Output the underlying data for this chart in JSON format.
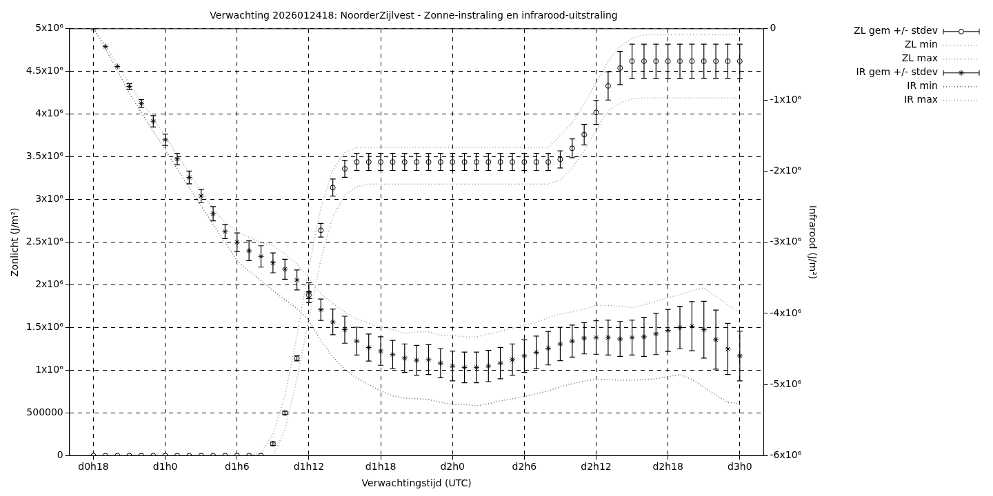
{
  "chart_data": {
    "type": "scatter",
    "title": "Verwachting 2026012418: NoorderZijlvest - Zonne-instraling en infrarood-uitstraling",
    "xlabel": "Verwachtingstijd (UTC)",
    "ylabel": "Zonlicht (J/m²)",
    "y2label": "Infrarood (J/m²)",
    "categories": [
      "d0h18",
      null,
      null,
      null,
      null,
      null,
      "d1h0",
      null,
      null,
      null,
      null,
      null,
      "d1h6",
      null,
      null,
      null,
      null,
      null,
      "d1h12",
      null,
      null,
      null,
      null,
      null,
      "d1h18",
      null,
      null,
      null,
      null,
      null,
      "d2h0",
      null,
      null,
      null,
      null,
      null,
      "d2h6",
      null,
      null,
      null,
      null,
      null,
      "d2h12",
      null,
      null,
      null,
      null,
      null,
      "d2h18",
      null,
      null,
      null,
      null,
      null,
      "d3h0"
    ],
    "ylim": [
      0,
      5000000
    ],
    "yticks": [
      0,
      500000,
      {
        "value": 1000000,
        "label": "1x10⁶"
      },
      {
        "value": 1500000,
        "label": "1.5x10⁶"
      },
      {
        "value": 2000000,
        "label": "2x10⁶"
      },
      {
        "value": 2500000,
        "label": "2.5x10⁶"
      },
      {
        "value": 3000000,
        "label": "3x10⁶"
      },
      {
        "value": 3500000,
        "label": "3.5x10⁶"
      },
      {
        "value": 4000000,
        "label": "4x10⁶"
      },
      {
        "value": 4500000,
        "label": "4.5x10⁶"
      },
      {
        "value": 5000000,
        "label": "5x10⁶"
      }
    ],
    "y2lim": [
      -6000000,
      0
    ],
    "y2ticks": [
      {
        "value": -6000000,
        "label": "-6x10⁶"
      },
      {
        "value": -5000000,
        "label": "-5x10⁶"
      },
      {
        "value": -4000000,
        "label": "-4x10⁶"
      },
      {
        "value": -3000000,
        "label": "-3x10⁶"
      },
      {
        "value": -2000000,
        "label": "-2x10⁶"
      },
      {
        "value": -1000000,
        "label": "-1x10⁶"
      },
      0
    ],
    "grid": true,
    "legend": "top right",
    "series": [
      {
        "name": "ZL gem +/- stdev",
        "type": "scatter",
        "marker": "circle",
        "color": "#000000",
        "values": [
          0,
          0,
          0,
          0,
          0,
          0,
          0,
          0,
          0,
          0,
          0,
          0,
          0,
          0,
          0,
          140000,
          500000,
          1140000,
          1880000,
          2640000,
          3140000,
          3360000,
          3440000,
          3440000,
          3440000,
          3440000,
          3440000,
          3440000,
          3440000,
          3440000,
          3440000,
          3440000,
          3440000,
          3440000,
          3440000,
          3440000,
          3440000,
          3440000,
          3440000,
          3470000,
          3600000,
          3760000,
          4020000,
          4330000,
          4540000,
          4620000,
          4620000,
          4620000,
          4620000,
          4620000,
          4620000,
          4620000,
          4620000,
          4620000,
          4620000
        ],
        "errors": [
          null,
          null,
          null,
          null,
          null,
          null,
          null,
          null,
          null,
          null,
          null,
          null,
          null,
          null,
          null,
          20000,
          20000,
          30000,
          40000,
          80000,
          100000,
          100000,
          100000,
          100000,
          100000,
          100000,
          100000,
          100000,
          100000,
          100000,
          100000,
          100000,
          100000,
          100000,
          100000,
          100000,
          100000,
          100000,
          100000,
          100000,
          110000,
          120000,
          140000,
          165000,
          195000,
          200000,
          200000,
          200000,
          200000,
          200000,
          200000,
          200000,
          200000,
          200000,
          200000
        ]
      },
      {
        "name": "ZL min",
        "type": "line",
        "marker": "none",
        "line_style": "dotted",
        "color": "#a0a0a0",
        "values": [
          0,
          0,
          0,
          0,
          0,
          0,
          0,
          0,
          0,
          0,
          0,
          0,
          0,
          0,
          0,
          0,
          300000,
          900000,
          1600000,
          2300000,
          2800000,
          3050000,
          3150000,
          3180000,
          3180000,
          3180000,
          3180000,
          3180000,
          3180000,
          3180000,
          3180000,
          3180000,
          3180000,
          3180000,
          3180000,
          3180000,
          3180000,
          3180000,
          3180000,
          3230000,
          3370000,
          3570000,
          3810000,
          4040000,
          4130000,
          4180000,
          4190000,
          4190000,
          4190000,
          4190000,
          4190000,
          4190000,
          4190000,
          4190000,
          4190000
        ]
      },
      {
        "name": "ZL max",
        "type": "line",
        "marker": "none",
        "line_style": "dotted",
        "color": "#a0a0a0",
        "values": [
          0,
          0,
          0,
          0,
          0,
          0,
          0,
          0,
          0,
          0,
          0,
          0,
          0,
          0,
          30000,
          250000,
          700000,
          1400000,
          2200000,
          2900000,
          3350000,
          3550000,
          3610000,
          3610000,
          3610000,
          3610000,
          3610000,
          3610000,
          3610000,
          3610000,
          3610000,
          3610000,
          3610000,
          3610000,
          3610000,
          3610000,
          3610000,
          3610000,
          3610000,
          3750000,
          3900000,
          4120000,
          4370000,
          4620000,
          4790000,
          4890000,
          4930000,
          4930000,
          4930000,
          4930000,
          4930000,
          4930000,
          4930000,
          4930000,
          4930000
        ]
      },
      {
        "name": "IR gem +/- stdev",
        "type": "scatter",
        "marker": "cross",
        "axis": "y2",
        "color": "#000000",
        "values": [
          0,
          -250000,
          -530000,
          -810000,
          -1050000,
          -1300000,
          -1560000,
          -1830000,
          -2090000,
          -2350000,
          -2600000,
          -2850000,
          -3000000,
          -3120000,
          -3200000,
          -3290000,
          -3380000,
          -3530000,
          -3710000,
          -3950000,
          -4120000,
          -4230000,
          -4390000,
          -4480000,
          -4530000,
          -4580000,
          -4630000,
          -4660000,
          -4650000,
          -4700000,
          -4740000,
          -4760000,
          -4760000,
          -4740000,
          -4700000,
          -4650000,
          -4600000,
          -4550000,
          -4490000,
          -4430000,
          -4390000,
          -4350000,
          -4340000,
          -4340000,
          -4360000,
          -4340000,
          -4330000,
          -4290000,
          -4240000,
          -4200000,
          -4180000,
          -4230000,
          -4370000,
          -4500000,
          -4600000
        ],
        "errors": [
          null,
          null,
          null,
          40000,
          55000,
          80000,
          80000,
          80000,
          90000,
          90000,
          100000,
          100000,
          130000,
          140000,
          150000,
          140000,
          140000,
          140000,
          140000,
          150000,
          180000,
          190000,
          195000,
          190000,
          200000,
          200000,
          200000,
          210000,
          210000,
          205000,
          210000,
          215000,
          215000,
          220000,
          220000,
          220000,
          230000,
          230000,
          235000,
          235000,
          225000,
          220000,
          235000,
          245000,
          245000,
          245000,
          275000,
          290000,
          295000,
          300000,
          345000,
          400000,
          415000,
          360000,
          350000
        ]
      },
      {
        "name": "IR min",
        "type": "line",
        "marker": "none",
        "line_style": "dotted",
        "axis": "y2",
        "color": "#606060",
        "values": [
          0,
          -280000,
          -590000,
          -900000,
          -1180000,
          -1440000,
          -1700000,
          -1970000,
          -2230000,
          -2490000,
          -2750000,
          -3000000,
          -3260000,
          -3410000,
          -3540000,
          -3680000,
          -3810000,
          -3930000,
          -4100000,
          -4380000,
          -4610000,
          -4790000,
          -4910000,
          -5000000,
          -5090000,
          -5160000,
          -5190000,
          -5200000,
          -5210000,
          -5250000,
          -5280000,
          -5280000,
          -5300000,
          -5270000,
          -5230000,
          -5200000,
          -5170000,
          -5130000,
          -5090000,
          -5030000,
          -4990000,
          -4950000,
          -4930000,
          -4930000,
          -4940000,
          -4940000,
          -4930000,
          -4920000,
          -4890000,
          -4860000,
          -4930000,
          -5040000,
          -5150000,
          -5250000,
          -5270000
        ]
      },
      {
        "name": "IR max",
        "type": "line",
        "marker": "none",
        "line_style": "dotted",
        "axis": "y2",
        "color": "#a0a0a0",
        "values": [
          0,
          -230000,
          -500000,
          -780000,
          -1020000,
          -1260000,
          -1510000,
          -1770000,
          -2020000,
          -2280000,
          -2530000,
          -2720000,
          -2850000,
          -2930000,
          -3000000,
          -3050000,
          -3160000,
          -3310000,
          -3500000,
          -3730000,
          -3860000,
          -3980000,
          -4080000,
          -4140000,
          -4190000,
          -4230000,
          -4280000,
          -4260000,
          -4260000,
          -4310000,
          -4310000,
          -4330000,
          -4330000,
          -4290000,
          -4250000,
          -4210000,
          -4160000,
          -4130000,
          -4060000,
          -4010000,
          -3980000,
          -3940000,
          -3890000,
          -3890000,
          -3900000,
          -3920000,
          -3880000,
          -3830000,
          -3780000,
          -3740000,
          -3680000,
          -3640000,
          -3760000,
          -3880000,
          -3990000
        ]
      }
    ]
  }
}
